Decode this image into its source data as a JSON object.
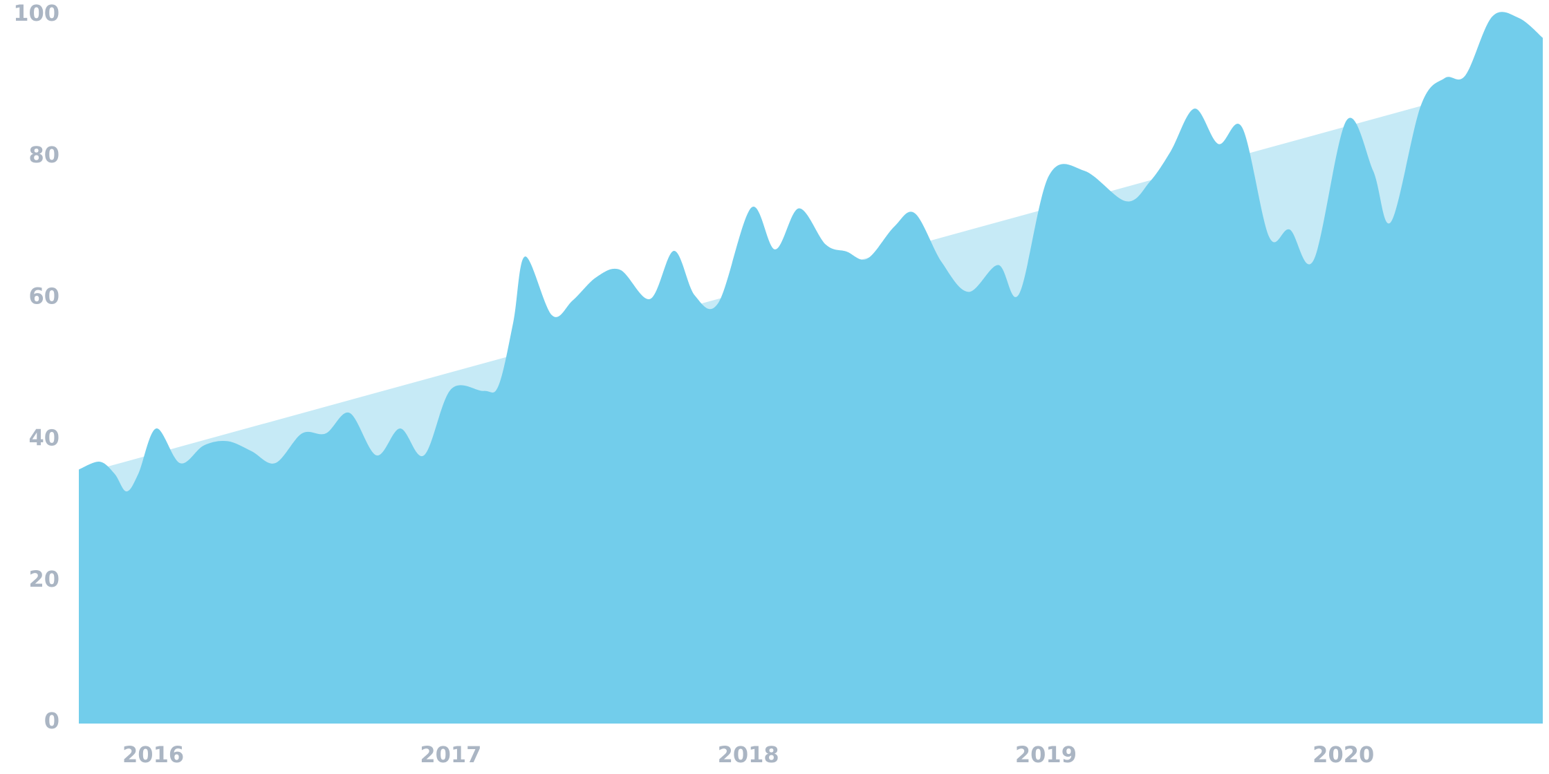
{
  "chart_data": {
    "type": "area",
    "xlim": [
      2015.75,
      2020.67
    ],
    "xticks": [
      2016,
      2017,
      2018,
      2019,
      2020
    ],
    "ylim": [
      0,
      100
    ],
    "yticks": [
      0,
      20,
      40,
      60,
      80,
      100
    ],
    "series": [
      {
        "color": "#c6eaf6",
        "x": [
          2015.75,
          2020.67
        ],
        "values": [
          35.2,
          92
        ]
      },
      {
        "color": "#72cdeb",
        "x": [
          2015.75,
          2015.82,
          2015.87,
          2015.91,
          2015.95,
          2016.01,
          2016.09,
          2016.17,
          2016.25,
          2016.33,
          2016.41,
          2016.5,
          2016.58,
          2016.66,
          2016.75,
          2016.83,
          2016.91,
          2017.0,
          2017.11,
          2017.16,
          2017.21,
          2017.25,
          2017.34,
          2017.41,
          2017.49,
          2017.57,
          2017.67,
          2017.75,
          2017.82,
          2017.9,
          2018.01,
          2018.09,
          2018.17,
          2018.26,
          2018.33,
          2018.4,
          2018.49,
          2018.56,
          2018.65,
          2018.74,
          2018.84,
          2018.91,
          2019.01,
          2019.13,
          2019.27,
          2019.35,
          2019.42,
          2019.5,
          2019.58,
          2019.66,
          2019.75,
          2019.82,
          2019.9,
          2020.01,
          2020.1,
          2020.16,
          2020.26,
          2020.34,
          2020.41,
          2020.5,
          2020.59,
          2020.67
        ],
        "values": [
          35.9,
          37.0,
          35.3,
          32.8,
          35.3,
          41.7,
          36.8,
          39.3,
          39.9,
          38.5,
          36.8,
          41.0,
          41.0,
          43.9,
          37.9,
          41.7,
          37.9,
          47.2,
          47.0,
          47.7,
          56.7,
          66.0,
          57.7,
          59.8,
          63.1,
          64.1,
          60.0,
          66.8,
          60.5,
          59.5,
          72.9,
          67.0,
          72.8,
          67.7,
          66.7,
          65.7,
          70.2,
          72.1,
          65.2,
          61.0,
          64.8,
          60.7,
          77.4,
          78.1,
          73.8,
          76.6,
          80.9,
          86.9,
          81.9,
          84.2,
          68.8,
          69.8,
          65.5,
          85.2,
          78.1,
          70.9,
          87.3,
          91.2,
          91.6,
          99.9,
          99.7,
          96.9
        ]
      }
    ]
  }
}
